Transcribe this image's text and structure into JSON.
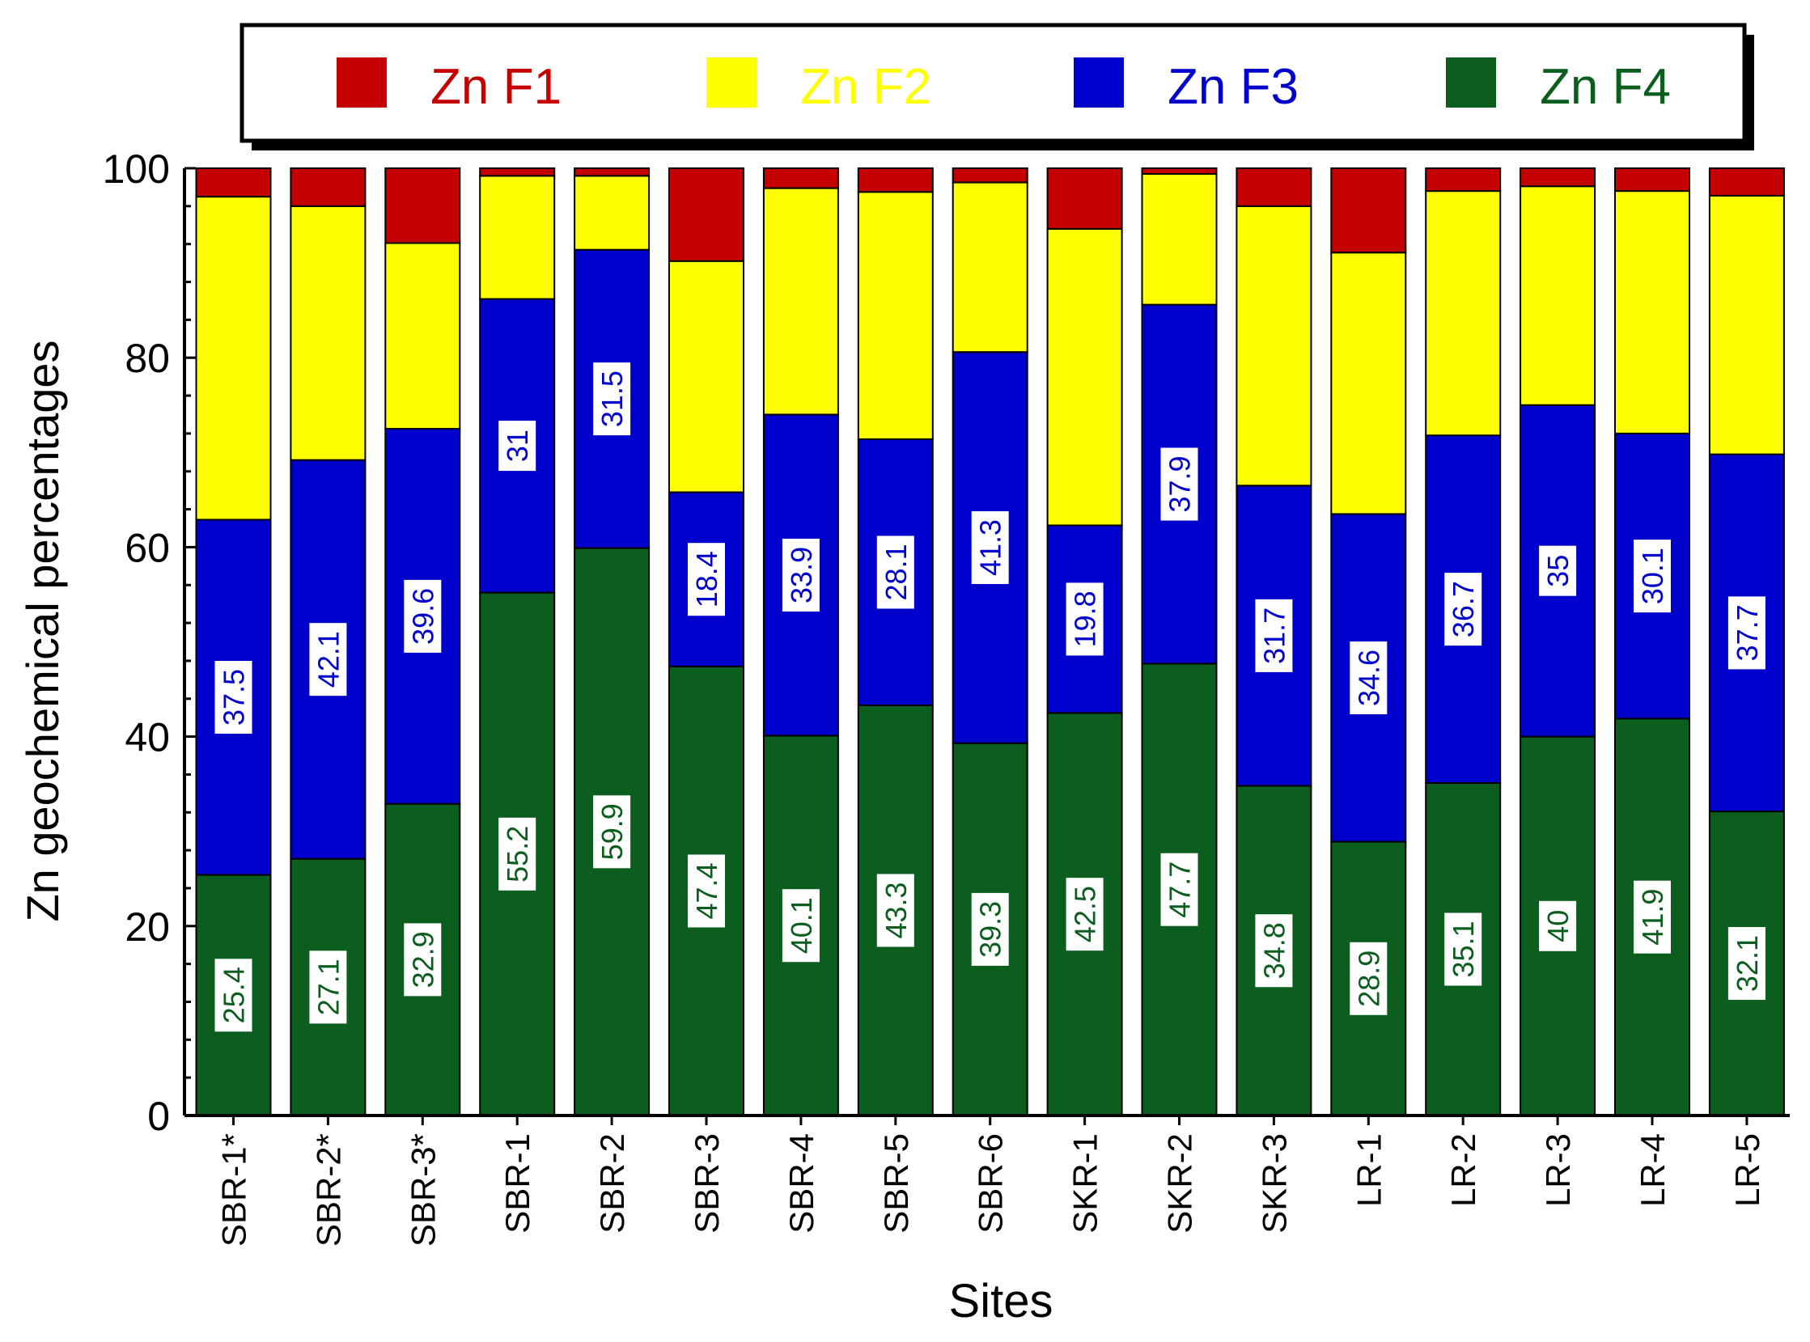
{
  "chart_data": {
    "type": "bar",
    "stacked": true,
    "title": "",
    "xlabel": "Sites",
    "ylabel": "Zn geochemical percentages",
    "ylim": [
      0,
      100
    ],
    "yticks": [
      0,
      20,
      40,
      60,
      80,
      100
    ],
    "grid": false,
    "legend_position": "top",
    "categories": [
      "SBR-1*",
      "SBR-2*",
      "SBR-3*",
      "SBR-1",
      "SBR-2",
      "SBR-3",
      "SBR-4",
      "SBR-5",
      "SBR-6",
      "SKR-1",
      "SKR-2",
      "SKR-3",
      "LR-1",
      "LR-2",
      "LR-3",
      "LR-4",
      "LR-5"
    ],
    "series": [
      {
        "name": "Zn F4",
        "color": "#0b5e1e",
        "labelColor": "#0b5e1e",
        "values": [
          25.4,
          27.1,
          32.9,
          55.2,
          59.9,
          47.4,
          40.1,
          43.3,
          39.3,
          42.5,
          47.7,
          34.8,
          28.9,
          35.1,
          40,
          41.9,
          32.1
        ],
        "labels": [
          "25.4",
          "27.1",
          "32.9",
          "55.2",
          "59.9",
          "47.4",
          "40.1",
          "43.3",
          "39.3",
          "42.5",
          "47.7",
          "34.8",
          "28.9",
          "35.1",
          "40",
          "41.9",
          "32.1"
        ]
      },
      {
        "name": "Zn F3",
        "color": "#0000cc",
        "labelColor": "#0000cc",
        "values": [
          37.5,
          42.1,
          39.6,
          31,
          31.5,
          18.4,
          33.9,
          28.1,
          41.3,
          19.8,
          37.9,
          31.7,
          34.6,
          36.7,
          35,
          30.1,
          37.7
        ],
        "labels": [
          "37.5",
          "42.1",
          "39.6",
          "31",
          "31.5",
          "18.4",
          "33.9",
          "28.1",
          "41.3",
          "19.8",
          "37.9",
          "31.7",
          "34.6",
          "36.7",
          "35",
          "30.1",
          "37.7"
        ]
      },
      {
        "name": "Zn F2",
        "color": "#ffff00",
        "values": [
          34.1,
          26.8,
          19.6,
          13.0,
          7.8,
          24.4,
          23.9,
          26.1,
          17.9,
          31.3,
          13.8,
          29.5,
          27.6,
          25.8,
          23.1,
          25.6,
          27.3
        ]
      },
      {
        "name": "Zn F1",
        "color": "#c40000",
        "values": [
          3.0,
          4.0,
          7.9,
          0.8,
          0.8,
          9.8,
          2.1,
          2.5,
          1.5,
          6.4,
          0.6,
          4.0,
          8.9,
          2.4,
          1.9,
          2.4,
          2.9
        ]
      }
    ],
    "legend": [
      {
        "name": "Zn F1",
        "swatch": "#c40000",
        "textColor": "#c40000"
      },
      {
        "name": "Zn F2",
        "swatch": "#ffff00",
        "textColor": "#ffff00"
      },
      {
        "name": "Zn F3",
        "swatch": "#0000cc",
        "textColor": "#0000cc"
      },
      {
        "name": "Zn F4",
        "swatch": "#0b5e1e",
        "textColor": "#0b5e1e"
      }
    ]
  }
}
